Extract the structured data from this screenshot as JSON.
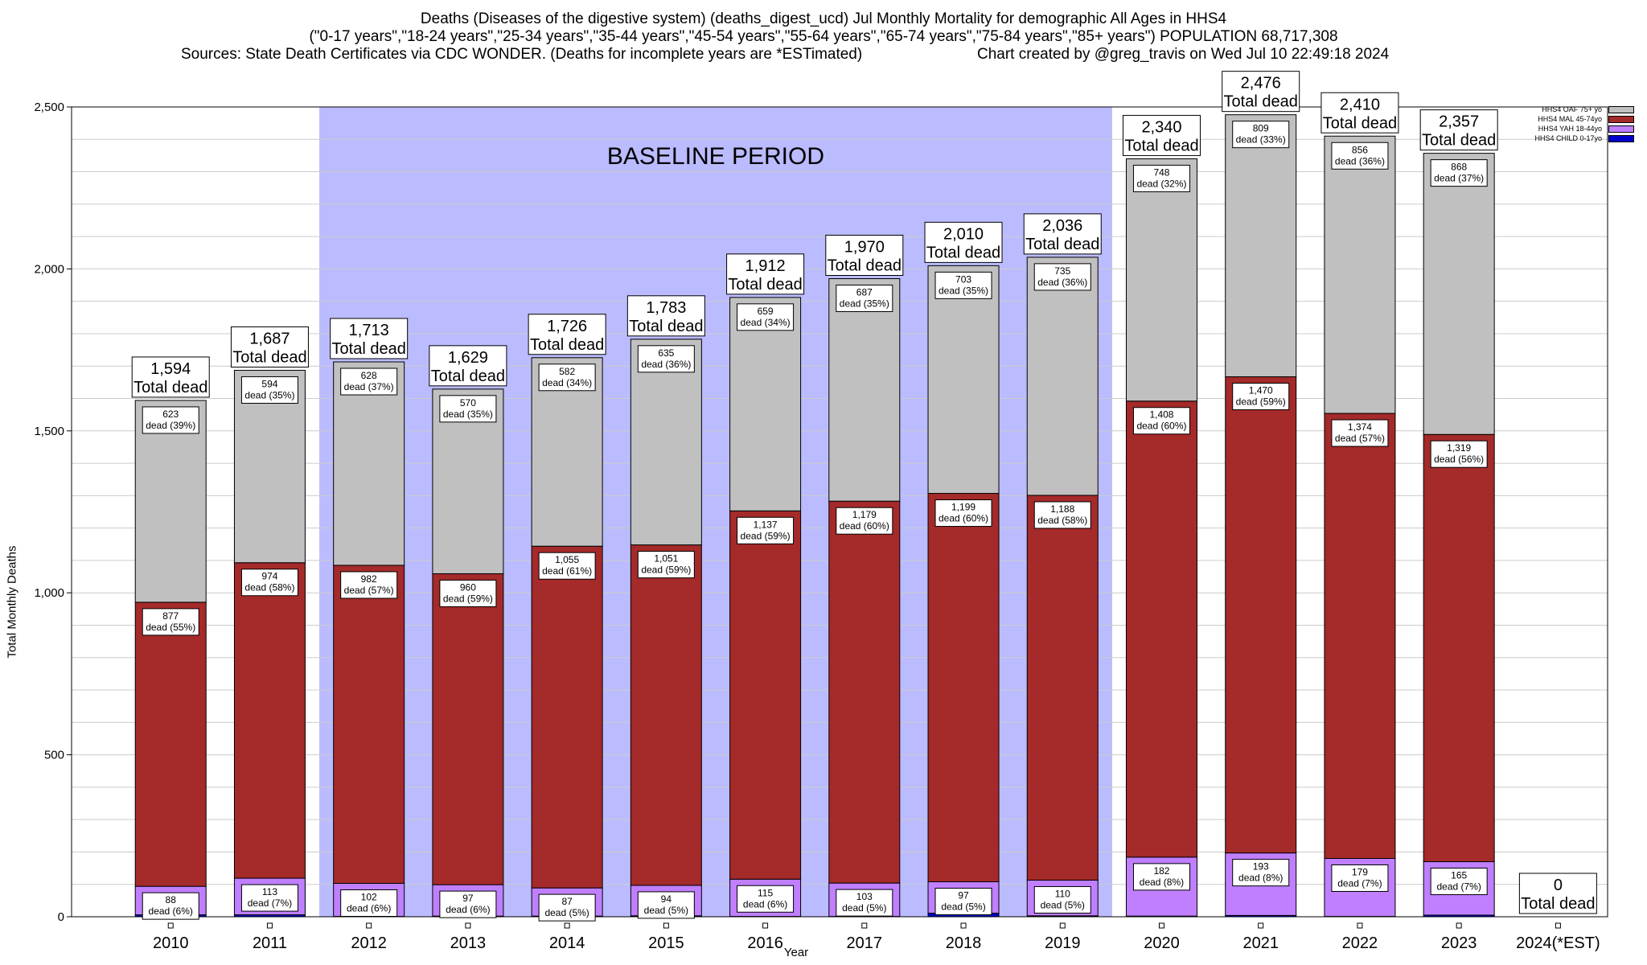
{
  "header": {
    "title_line1": "Deaths (Diseases of the digestive system) (deaths_digest_ucd) Jul Monthly Mortality for demographic All Ages in HHS4",
    "title_line2": "(\"0-17 years\",\"18-24 years\",\"25-34 years\",\"35-44 years\",\"45-54 years\",\"55-64 years\",\"65-74 years\",\"75-84 years\",\"85+ years\") POPULATION 68,717,308",
    "sources": "Sources: State Death Certificates via CDC WONDER. (Deaths for incomplete years are *ESTimated)",
    "credit": "Chart created by @greg_travis on Wed Jul 10 22:49:18 2024"
  },
  "chart_data": {
    "type": "bar",
    "stacked": true,
    "categories": [
      "2010",
      "2011",
      "2012",
      "2013",
      "2014",
      "2015",
      "2016",
      "2017",
      "2018",
      "2019",
      "2020",
      "2021",
      "2022",
      "2023",
      "2024(*EST)"
    ],
    "series": [
      {
        "name": "HHS4 CHILD 0-17yo",
        "color": "#0000cc",
        "values": [
          6,
          6,
          1,
          2,
          2,
          3,
          1,
          1,
          11,
          3,
          2,
          4,
          1,
          5,
          0
        ]
      },
      {
        "name": "HHS4 YAH 18-44yo",
        "color": "#bf7fff",
        "values": [
          88,
          113,
          102,
          97,
          87,
          94,
          115,
          103,
          97,
          110,
          182,
          193,
          179,
          165,
          0
        ],
        "labels": [
          "88",
          "113",
          "102",
          "97",
          "87",
          "94",
          "115",
          "103",
          "97",
          "110",
          "182",
          "193",
          "179",
          "165",
          ""
        ],
        "pct": [
          "(6%)",
          "(7%)",
          "(6%)",
          "(6%)",
          "(5%)",
          "(5%)",
          "(6%)",
          "(5%)",
          "(5%)",
          "(5%)",
          "(8%)",
          "(8%)",
          "(7%)",
          "(7%)",
          ""
        ]
      },
      {
        "name": "HHS4 MAL 45-74yo",
        "color": "#a52a2a",
        "values": [
          877,
          974,
          982,
          960,
          1055,
          1051,
          1137,
          1179,
          1199,
          1188,
          1408,
          1470,
          1374,
          1319,
          0
        ],
        "labels": [
          "877",
          "974",
          "982",
          "960",
          "1,055",
          "1,051",
          "1,137",
          "1,179",
          "1,199",
          "1,188",
          "1,408",
          "1,470",
          "1,374",
          "1,319",
          ""
        ],
        "pct": [
          "(55%)",
          "(58%)",
          "(57%)",
          "(59%)",
          "(61%)",
          "(59%)",
          "(59%)",
          "(60%)",
          "(60%)",
          "(58%)",
          "(60%)",
          "(59%)",
          "(57%)",
          "(56%)",
          ""
        ]
      },
      {
        "name": "HHS4 OAF 75+ yo",
        "color": "#c0c0c0",
        "values": [
          623,
          594,
          628,
          570,
          582,
          635,
          659,
          687,
          703,
          735,
          748,
          809,
          856,
          868,
          0
        ],
        "labels": [
          "623",
          "594",
          "628",
          "570",
          "582",
          "635",
          "659",
          "687",
          "703",
          "735",
          "748",
          "809",
          "856",
          "868",
          ""
        ],
        "pct": [
          "(39%)",
          "(35%)",
          "(37%)",
          "(35%)",
          "(34%)",
          "(36%)",
          "(34%)",
          "(35%)",
          "(35%)",
          "(36%)",
          "(32%)",
          "(33%)",
          "(36%)",
          "(37%)",
          ""
        ]
      }
    ],
    "totals": [
      1594,
      1687,
      1713,
      1629,
      1726,
      1783,
      1912,
      1970,
      2010,
      2036,
      2340,
      2476,
      2410,
      2357,
      0
    ],
    "total_labels": [
      "1,594",
      "1,687",
      "1,713",
      "1,629",
      "1,726",
      "1,783",
      "1,912",
      "1,970",
      "2,010",
      "2,036",
      "2,340",
      "2,476",
      "2,410",
      "2,357",
      "0"
    ],
    "total_suffix": "Total dead",
    "dead_word": "dead",
    "ylabel": "Total Monthly Deaths",
    "xlabel": "Year",
    "ylim": [
      0,
      2500
    ],
    "yticks": [
      0,
      500,
      1000,
      1500,
      2000,
      2500
    ],
    "ytick_labels": [
      "0",
      "500",
      "1,000",
      "1,500",
      "2,000",
      "2,500"
    ],
    "baseline": {
      "label": "BASELINE PERIOD",
      "from": "2012",
      "to": "2019",
      "color": "#bbbbff"
    },
    "legend_position": "top-right",
    "grid": true
  },
  "legend_order": [
    "HHS4 OAF 75+ yo",
    "HHS4 MAL 45-74yo",
    "HHS4 YAH 18-44yo",
    "HHS4 CHILD 0-17yo"
  ]
}
